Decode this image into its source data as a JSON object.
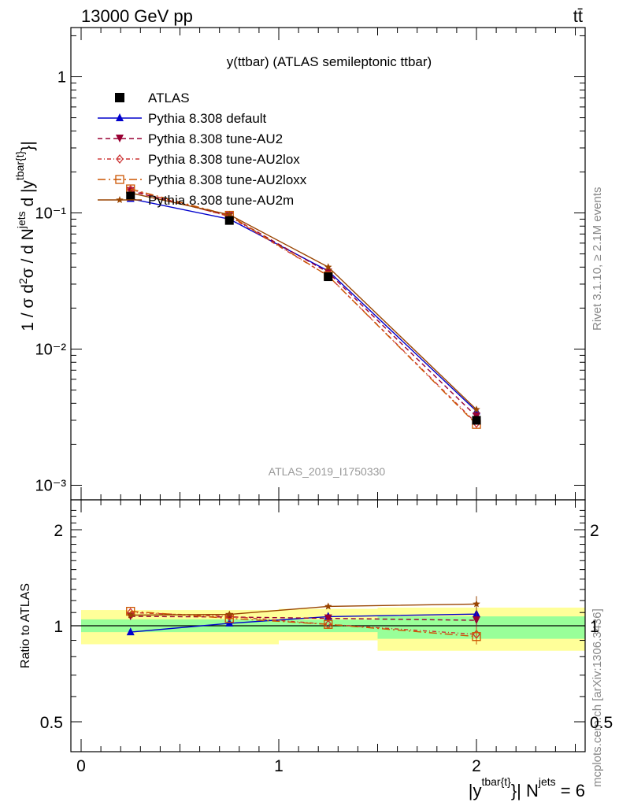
{
  "header": {
    "left": "13000 GeV pp",
    "right": "tt̄"
  },
  "side": {
    "rivet": "Rivet 3.1.10, ≥ 2.1M events",
    "mcplots": "mcplots.cern.ch [arXiv:1306.3436]"
  },
  "colors": {
    "ATLAS": "#000000",
    "Pythia 8.308 default": "#0000cc",
    "Pythia 8.308 tune-AU2": "#990033",
    "Pythia 8.308 tune-AU2lox": "#cc3333",
    "Pythia 8.308 tune-AU2loxx": "#cc5500",
    "Pythia 8.308 tune-AU2m": "#994400",
    "band_inner": "#99ff99",
    "band_outer": "#ffff99"
  },
  "chart_data": [
    {
      "type": "line",
      "title": "y(ttbar) (ATLAS semileptonic ttbar)",
      "ylabel": "1 / σ d²σ / d Nʲᵉᵗˢ d |yᵗᵇᵃʳ⁽ᵗ⁾|",
      "xlabel": "|y^{tbar{t}}| N^{jets} = 6",
      "yscale": "log",
      "xlim": [
        -0.1,
        2.55
      ],
      "ylim": [
        0.00075,
        2.2
      ],
      "y_ticks": [
        "10⁻³",
        "10⁻²",
        "10⁻¹",
        "1"
      ],
      "watermark": "ATLAS_2019_I1750330",
      "legend_position": "top-left",
      "x": [
        0.25,
        0.75,
        1.25,
        2.0
      ],
      "series": [
        {
          "name": "ATLAS",
          "marker": "filled-square",
          "line": "none",
          "values": [
            0.133,
            0.088,
            0.034,
            0.003
          ]
        },
        {
          "name": "Pythia 8.308 default",
          "marker": "filled-triangle-up",
          "line": "solid",
          "values": [
            0.127,
            0.09,
            0.0375,
            0.0035
          ]
        },
        {
          "name": "Pythia 8.308 tune-AU2",
          "marker": "filled-triangle-down",
          "line": "dashed",
          "values": [
            0.145,
            0.095,
            0.0365,
            0.0032
          ]
        },
        {
          "name": "Pythia 8.308 tune-AU2lox",
          "marker": "open-diamond",
          "line": "dash-dot",
          "values": [
            0.148,
            0.094,
            0.0345,
            0.00285
          ]
        },
        {
          "name": "Pythia 8.308 tune-AU2loxx",
          "marker": "open-square",
          "line": "long-dash-dot",
          "values": [
            0.15,
            0.096,
            0.0345,
            0.0028
          ]
        },
        {
          "name": "Pythia 8.308 tune-AU2m",
          "marker": "filled-star",
          "line": "solid",
          "values": [
            0.14,
            0.097,
            0.04,
            0.0036
          ]
        }
      ]
    },
    {
      "type": "line",
      "ylabel": "Ratio to ATLAS",
      "xlabel": "|y^{tbar{t}}| N^{jets} = 6",
      "yscale": "log",
      "xlim": [
        -0.1,
        2.55
      ],
      "ylim": [
        0.4,
        2.5
      ],
      "y_ticks": [
        "0.5",
        "1",
        "2"
      ],
      "x_ticks": [
        "0",
        "1",
        "2"
      ],
      "bands": [
        {
          "x_range": [
            0,
            1
          ],
          "inner": [
            0.955,
            1.047
          ],
          "outer": [
            0.875,
            1.12
          ]
        },
        {
          "x_range": [
            1,
            1.5
          ],
          "inner": [
            0.955,
            1.045
          ],
          "outer": [
            0.9,
            1.13
          ]
        },
        {
          "x_range": [
            1.5,
            2.55
          ],
          "inner": [
            0.91,
            1.07
          ],
          "outer": [
            0.835,
            1.14
          ]
        }
      ],
      "x": [
        0.25,
        0.75,
        1.25,
        2.0
      ],
      "series": [
        {
          "name": "Pythia 8.308 default",
          "values": [
            0.955,
            1.018,
            1.068,
            1.088
          ]
        },
        {
          "name": "Pythia 8.308 tune-AU2",
          "values": [
            1.07,
            1.065,
            1.055,
            1.04
          ]
        },
        {
          "name": "Pythia 8.308 tune-AU2lox",
          "values": [
            1.1,
            1.07,
            1.01,
            0.94
          ]
        },
        {
          "name": "Pythia 8.308 tune-AU2loxx",
          "values": [
            1.11,
            1.055,
            1.01,
            0.925
          ]
        },
        {
          "name": "Pythia 8.308 tune-AU2m",
          "values": [
            1.08,
            1.085,
            1.15,
            1.17
          ]
        }
      ]
    }
  ]
}
